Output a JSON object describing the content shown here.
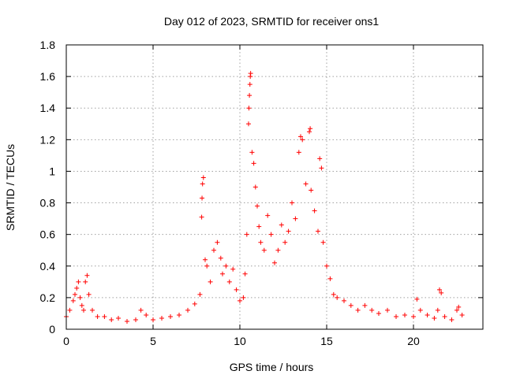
{
  "chart_data": {
    "type": "scatter",
    "title": "Day 012 of 2023, SRMTID for receiver ons1",
    "xlabel": "GPS time / hours",
    "ylabel": "SRMTID / TECUs",
    "xlim": [
      0,
      24
    ],
    "ylim": [
      0,
      1.8
    ],
    "x_ticks": [
      0,
      5,
      10,
      15,
      20
    ],
    "y_ticks": [
      0,
      0.2,
      0.4,
      0.6,
      0.8,
      1,
      1.2,
      1.4,
      1.6,
      1.8
    ],
    "x_tick_labels": [
      "0",
      "5",
      "10",
      "15",
      "20"
    ],
    "y_tick_labels": [
      "0",
      "0.2",
      "0.4",
      "0.6",
      "0.8",
      "1",
      "1.2",
      "1.4",
      "1.6",
      "1.8"
    ],
    "grid": true,
    "marker": "+",
    "color": "#ff0000",
    "series": [
      {
        "name": "SRMTID",
        "points": [
          [
            0.0,
            0.08
          ],
          [
            0.2,
            0.12
          ],
          [
            0.4,
            0.18
          ],
          [
            0.5,
            0.22
          ],
          [
            0.6,
            0.26
          ],
          [
            0.7,
            0.3
          ],
          [
            0.8,
            0.2
          ],
          [
            0.9,
            0.15
          ],
          [
            1.0,
            0.12
          ],
          [
            1.1,
            0.3
          ],
          [
            1.2,
            0.34
          ],
          [
            1.3,
            0.22
          ],
          [
            1.5,
            0.12
          ],
          [
            1.8,
            0.08
          ],
          [
            2.2,
            0.08
          ],
          [
            2.6,
            0.06
          ],
          [
            3.0,
            0.07
          ],
          [
            3.5,
            0.05
          ],
          [
            4.0,
            0.06
          ],
          [
            4.3,
            0.12
          ],
          [
            4.6,
            0.09
          ],
          [
            5.0,
            0.06
          ],
          [
            5.5,
            0.07
          ],
          [
            6.0,
            0.08
          ],
          [
            6.5,
            0.09
          ],
          [
            7.0,
            0.12
          ],
          [
            7.4,
            0.16
          ],
          [
            7.7,
            0.22
          ],
          [
            7.8,
            0.71
          ],
          [
            7.82,
            0.83
          ],
          [
            7.85,
            0.92
          ],
          [
            7.9,
            0.96
          ],
          [
            8.0,
            0.44
          ],
          [
            8.1,
            0.4
          ],
          [
            8.3,
            0.3
          ],
          [
            8.5,
            0.5
          ],
          [
            8.7,
            0.55
          ],
          [
            8.9,
            0.45
          ],
          [
            9.0,
            0.35
          ],
          [
            9.2,
            0.4
          ],
          [
            9.4,
            0.3
          ],
          [
            9.6,
            0.38
          ],
          [
            9.8,
            0.25
          ],
          [
            10.0,
            0.18
          ],
          [
            10.2,
            0.2
          ],
          [
            10.3,
            0.35
          ],
          [
            10.4,
            0.6
          ],
          [
            10.5,
            1.3
          ],
          [
            10.52,
            1.4
          ],
          [
            10.55,
            1.48
          ],
          [
            10.58,
            1.55
          ],
          [
            10.6,
            1.6
          ],
          [
            10.62,
            1.62
          ],
          [
            10.7,
            1.12
          ],
          [
            10.8,
            1.05
          ],
          [
            10.9,
            0.9
          ],
          [
            11.0,
            0.78
          ],
          [
            11.1,
            0.65
          ],
          [
            11.2,
            0.55
          ],
          [
            11.4,
            0.5
          ],
          [
            11.6,
            0.72
          ],
          [
            11.8,
            0.6
          ],
          [
            12.0,
            0.42
          ],
          [
            12.2,
            0.5
          ],
          [
            12.4,
            0.66
          ],
          [
            12.6,
            0.55
          ],
          [
            12.8,
            0.62
          ],
          [
            13.0,
            0.8
          ],
          [
            13.2,
            0.7
          ],
          [
            13.4,
            1.12
          ],
          [
            13.5,
            1.22
          ],
          [
            13.6,
            1.2
          ],
          [
            13.8,
            0.92
          ],
          [
            14.0,
            1.25
          ],
          [
            14.05,
            1.27
          ],
          [
            14.1,
            0.88
          ],
          [
            14.3,
            0.75
          ],
          [
            14.5,
            0.62
          ],
          [
            14.6,
            1.08
          ],
          [
            14.7,
            1.02
          ],
          [
            14.8,
            0.55
          ],
          [
            15.0,
            0.4
          ],
          [
            15.2,
            0.32
          ],
          [
            15.4,
            0.22
          ],
          [
            15.6,
            0.2
          ],
          [
            16.0,
            0.18
          ],
          [
            16.4,
            0.15
          ],
          [
            16.8,
            0.12
          ],
          [
            17.2,
            0.15
          ],
          [
            17.6,
            0.12
          ],
          [
            18.0,
            0.1
          ],
          [
            18.5,
            0.12
          ],
          [
            19.0,
            0.08
          ],
          [
            19.5,
            0.09
          ],
          [
            20.0,
            0.08
          ],
          [
            20.2,
            0.19
          ],
          [
            20.4,
            0.12
          ],
          [
            20.8,
            0.09
          ],
          [
            21.2,
            0.07
          ],
          [
            21.4,
            0.12
          ],
          [
            21.5,
            0.25
          ],
          [
            21.6,
            0.23
          ],
          [
            21.8,
            0.08
          ],
          [
            22.2,
            0.06
          ],
          [
            22.5,
            0.12
          ],
          [
            22.6,
            0.14
          ],
          [
            22.8,
            0.09
          ]
        ]
      }
    ]
  }
}
